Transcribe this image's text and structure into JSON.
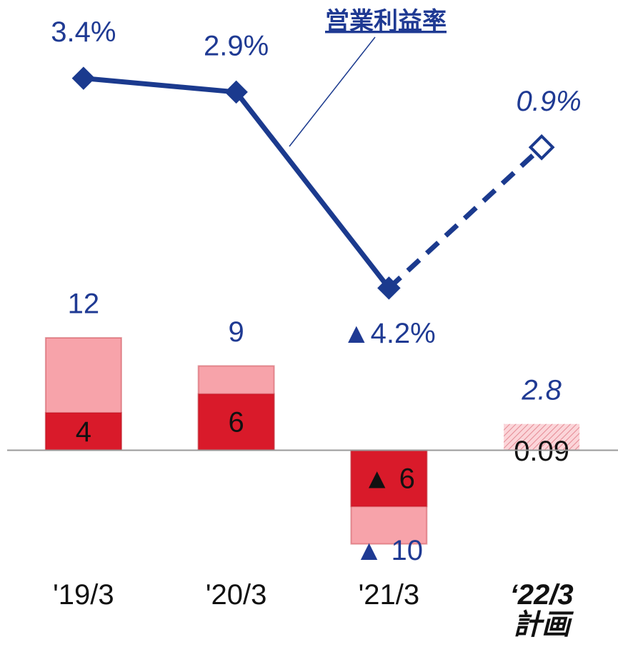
{
  "chart_data": {
    "type": "bar_line",
    "categories": [
      "'19/3",
      "'20/3",
      "'21/3",
      "‘22/3\n計画"
    ],
    "forecast": [
      false,
      false,
      false,
      true
    ],
    "ylim": [
      -21,
      45
    ],
    "y2lim": [
      -17.2,
      5.2
    ],
    "series": [
      {
        "type": "bar",
        "color": "#f7a3aa",
        "values": [
          12,
          9,
          -10,
          2.8
        ],
        "value_labels": [
          "12",
          "9",
          "▲ 10",
          "2.8"
        ]
      },
      {
        "type": "bar",
        "color": "#d91a2a",
        "values": [
          4,
          6,
          -6,
          0.09
        ],
        "value_labels": [
          "4",
          "6",
          "▲ 6",
          "0.09"
        ]
      },
      {
        "type": "line",
        "name": "営業利益率",
        "axis": "y2",
        "color": "#1b3a8e",
        "values": [
          3.4,
          2.9,
          -4.2,
          0.9
        ],
        "value_labels": [
          "3.4%",
          "2.9%",
          "▲4.2%",
          "0.9%"
        ]
      }
    ]
  }
}
